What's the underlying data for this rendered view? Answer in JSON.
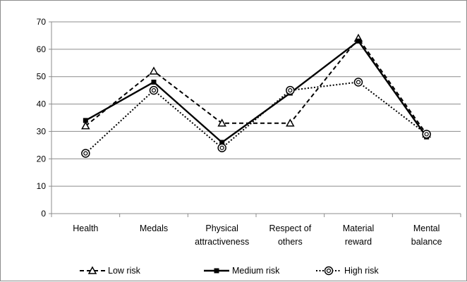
{
  "chart_data": {
    "type": "line",
    "categories": [
      [
        "Health"
      ],
      [
        "Medals"
      ],
      [
        "Physical",
        "attractiveness"
      ],
      [
        "Respect of",
        "others"
      ],
      [
        "Material",
        "reward"
      ],
      [
        "Mental",
        "balance"
      ]
    ],
    "ylim": [
      0,
      70
    ],
    "yticks": [
      0,
      10,
      20,
      30,
      40,
      50,
      60,
      70
    ],
    "grid": true,
    "legend_position": "bottom",
    "series": [
      {
        "name": "Low risk",
        "values": [
          32,
          52,
          33,
          33,
          64,
          29
        ],
        "line_style": "dashed",
        "marker": "triangle",
        "color": "#000000"
      },
      {
        "name": "Medium risk",
        "values": [
          34,
          48,
          26,
          44,
          63,
          28
        ],
        "line_style": "solid",
        "marker": "square",
        "color": "#000000"
      },
      {
        "name": "High risk",
        "values": [
          22,
          45,
          24,
          45,
          48,
          29
        ],
        "line_style": "dotted",
        "marker": "circle",
        "color": "#000000"
      }
    ]
  }
}
